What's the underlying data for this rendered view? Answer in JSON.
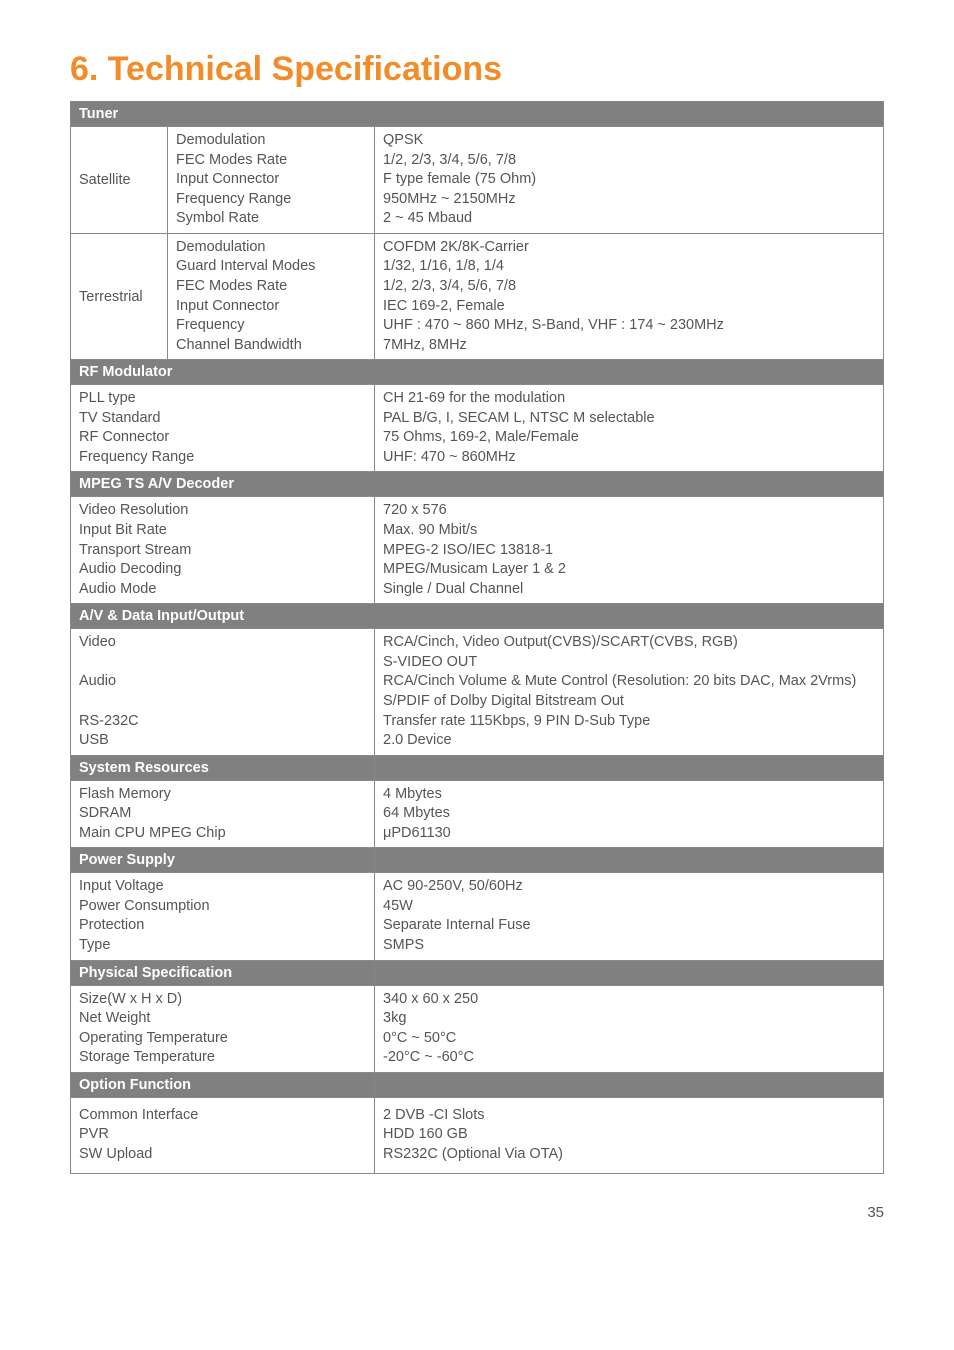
{
  "title": "6. Technical Specifications",
  "page_number": "35",
  "colors": {
    "accent": "#f28c28",
    "header_bg": "#808080",
    "header_text": "#ffffff",
    "body_text": "#555555",
    "border": "#888888"
  },
  "sections": {
    "tuner": {
      "header": "Tuner",
      "rows": {
        "satellite": {
          "label": "Satellite",
          "params": "Demodulation\nFEC Modes Rate\nInput Connector\nFrequency Range\nSymbol Rate",
          "values": "QPSK\n1/2, 2/3, 3/4, 5/6, 7/8\nF type female (75 Ohm)\n950MHz ~ 2150MHz\n2 ~ 45 Mbaud"
        },
        "terrestrial": {
          "label": "Terrestrial",
          "params": "Demodulation\nGuard Interval Modes\nFEC Modes Rate\nInput Connector\nFrequency\nChannel Bandwidth",
          "values": "COFDM 2K/8K-Carrier\n1/32, 1/16, 1/8, 1/4\n1/2, 2/3, 3/4, 5/6, 7/8\nIEC 169-2, Female\nUHF : 470 ~ 860 MHz, S-Band, VHF : 174 ~ 230MHz\n7MHz, 8MHz"
        }
      }
    },
    "rf_modulator": {
      "header": "RF Modulator",
      "params": "PLL type\nTV Standard\nRF Connector\nFrequency Range",
      "values": "CH 21-69 for the modulation\nPAL B/G, I, SECAM L, NTSC M selectable\n75 Ohms, 169-2, Male/Female\nUHF: 470 ~ 860MHz"
    },
    "mpeg": {
      "header": "MPEG TS A/V Decoder",
      "params": "Video Resolution\nInput Bit Rate\nTransport Stream\nAudio Decoding\nAudio Mode",
      "values": "720 x 576\nMax. 90 Mbit/s\nMPEG-2 ISO/IEC 13818-1\nMPEG/Musicam Layer 1 & 2\nSingle / Dual Channel"
    },
    "av_io": {
      "header": "A/V & Data Input/Output",
      "params": "Video\n\nAudio\n\nRS-232C\nUSB",
      "values": "RCA/Cinch, Video Output(CVBS)/SCART(CVBS, RGB)\nS-VIDEO OUT\nRCA/Cinch Volume & Mute Control (Resolution: 20 bits DAC, Max 2Vrms) S/PDIF of Dolby Digital Bitstream Out\nTransfer rate 115Kbps, 9 PIN D-Sub Type\n2.0 Device"
    },
    "sys_res": {
      "header": "System Resources",
      "params": "Flash Memory\nSDRAM\nMain CPU MPEG Chip",
      "values": "4 Mbytes\n64 Mbytes\nμPD61130"
    },
    "power": {
      "header": "Power Supply",
      "params": "Input Voltage\nPower Consumption\nProtection\nType",
      "values": "AC 90-250V, 50/60Hz\n45W\nSeparate Internal Fuse\nSMPS"
    },
    "physical": {
      "header": "Physical Specification",
      "params": "Size(W x H x D)\nNet Weight\nOperating Temperature\nStorage Temperature",
      "values": "340 x 60 x 250\n3kg\n0°C ~ 50°C\n-20°C ~ -60°C"
    },
    "option": {
      "header": "Option Function",
      "params": "Common Interface\nPVR\nSW Upload",
      "values": "2 DVB -CI Slots\nHDD 160 GB\nRS232C (Optional Via OTA)"
    }
  }
}
